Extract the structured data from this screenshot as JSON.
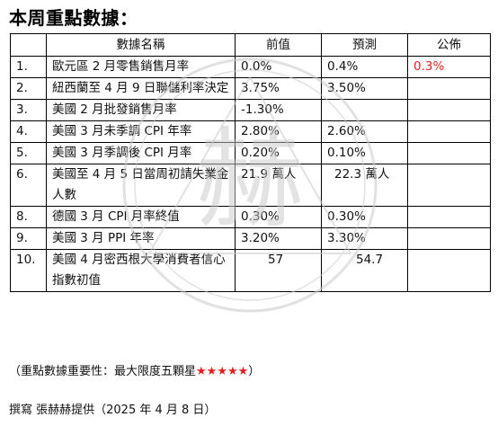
{
  "title": "本周重點數據：",
  "table": {
    "headers": [
      "",
      "數據名稱",
      "前值",
      "預測",
      "公佈"
    ],
    "rows": [
      {
        "num": "1.",
        "name": "歐元區 2 月零售銷售月率",
        "prev": "0.0%",
        "forecast": "0.4%",
        "actual": "0.3%"
      },
      {
        "num": "2.",
        "name": "紐西蘭至 4 月 9 日聯儲利率決定",
        "prev": "3.75%",
        "forecast": "3.50%",
        "actual": ""
      },
      {
        "num": "3.",
        "name": "美國 2 月批發銷售月率",
        "prev": "-1.30%",
        "forecast": "",
        "actual": ""
      },
      {
        "num": "4.",
        "name": "美國 3 月未季調 CPI 年率",
        "prev": "2.80%",
        "forecast": "2.60%",
        "actual": ""
      },
      {
        "num": "5.",
        "name": "美國 3 月季調後 CPI 月率",
        "prev": "0.20%",
        "forecast": "0.10%",
        "actual": ""
      },
      {
        "num": "6.",
        "name": "美國至 4 月 5 日當周初請失業金人數",
        "prev": "21.9 萬人",
        "forecast": "22.3 萬人",
        "actual": ""
      },
      {
        "num": "8.",
        "name": "德國 3 月 CPI 月率終值",
        "prev": "0.30%",
        "forecast": "0.30%",
        "actual": ""
      },
      {
        "num": "9.",
        "name": "美國 3 月 PPI 年率",
        "prev": "3.20%",
        "forecast": "3.30%",
        "actual": ""
      },
      {
        "num": "10.",
        "name": "美國 4 月密西根大學消費者信心指數初值",
        "prev": "57",
        "forecast": "54.7",
        "actual": ""
      }
    ]
  },
  "note": {
    "prefix": "（重點數據重要性：最大限度五顆星",
    "stars": "★★★★★",
    "suffix": "）"
  },
  "credit": "撰寫 張赫赫提供（2025 年 4 月 8 日）",
  "watermark": {
    "char": "赫"
  },
  "colors": {
    "highlight": "#e41e1e",
    "watermark": "#c9c9c9"
  }
}
